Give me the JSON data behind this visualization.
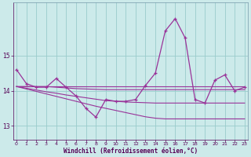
{
  "hours": [
    0,
    1,
    2,
    3,
    4,
    5,
    6,
    7,
    8,
    9,
    10,
    11,
    12,
    13,
    14,
    15,
    16,
    17,
    18,
    19,
    20,
    21,
    22,
    23
  ],
  "windchill": [
    14.6,
    14.2,
    14.1,
    14.1,
    14.35,
    14.1,
    13.85,
    13.5,
    13.25,
    13.75,
    13.7,
    13.7,
    13.75,
    14.15,
    14.5,
    15.7,
    16.05,
    15.5,
    13.75,
    13.65,
    14.3,
    14.45,
    14.0,
    14.1
  ],
  "line1": [
    14.12,
    14.12,
    14.12,
    14.12,
    14.12,
    14.12,
    14.12,
    14.12,
    14.12,
    14.12,
    14.12,
    14.12,
    14.12,
    14.12,
    14.12,
    14.12,
    14.12,
    14.12,
    14.12,
    14.12,
    14.12,
    14.12,
    14.12,
    14.12
  ],
  "line2": [
    14.12,
    14.12,
    14.12,
    14.12,
    14.1,
    14.08,
    14.06,
    14.05,
    14.04,
    14.03,
    14.03,
    14.03,
    14.03,
    14.03,
    14.03,
    14.03,
    14.03,
    14.03,
    14.03,
    14.03,
    14.03,
    14.03,
    14.03,
    14.03
  ],
  "line3": [
    14.12,
    14.07,
    14.02,
    13.97,
    13.93,
    13.88,
    13.84,
    13.8,
    13.76,
    13.72,
    13.7,
    13.68,
    13.67,
    13.66,
    13.65,
    13.65,
    13.65,
    13.65,
    13.65,
    13.65,
    13.65,
    13.65,
    13.65,
    13.65
  ],
  "line4": [
    14.12,
    14.05,
    13.98,
    13.91,
    13.84,
    13.77,
    13.7,
    13.63,
    13.56,
    13.5,
    13.44,
    13.38,
    13.32,
    13.26,
    13.22,
    13.2,
    13.2,
    13.2,
    13.2,
    13.2,
    13.2,
    13.2,
    13.2,
    13.2
  ],
  "xlabel": "Windchill (Refroidissement éolien,°C)",
  "bg_color": "#cceaea",
  "line_color": "#993399",
  "grid_color": "#99cccc",
  "ylim_min": 12.6,
  "ylim_max": 16.5,
  "yticks": [
    13,
    14,
    15
  ],
  "xticks": [
    0,
    1,
    2,
    3,
    4,
    5,
    6,
    7,
    8,
    9,
    10,
    11,
    12,
    13,
    14,
    15,
    16,
    17,
    18,
    19,
    20,
    21,
    22,
    23
  ]
}
